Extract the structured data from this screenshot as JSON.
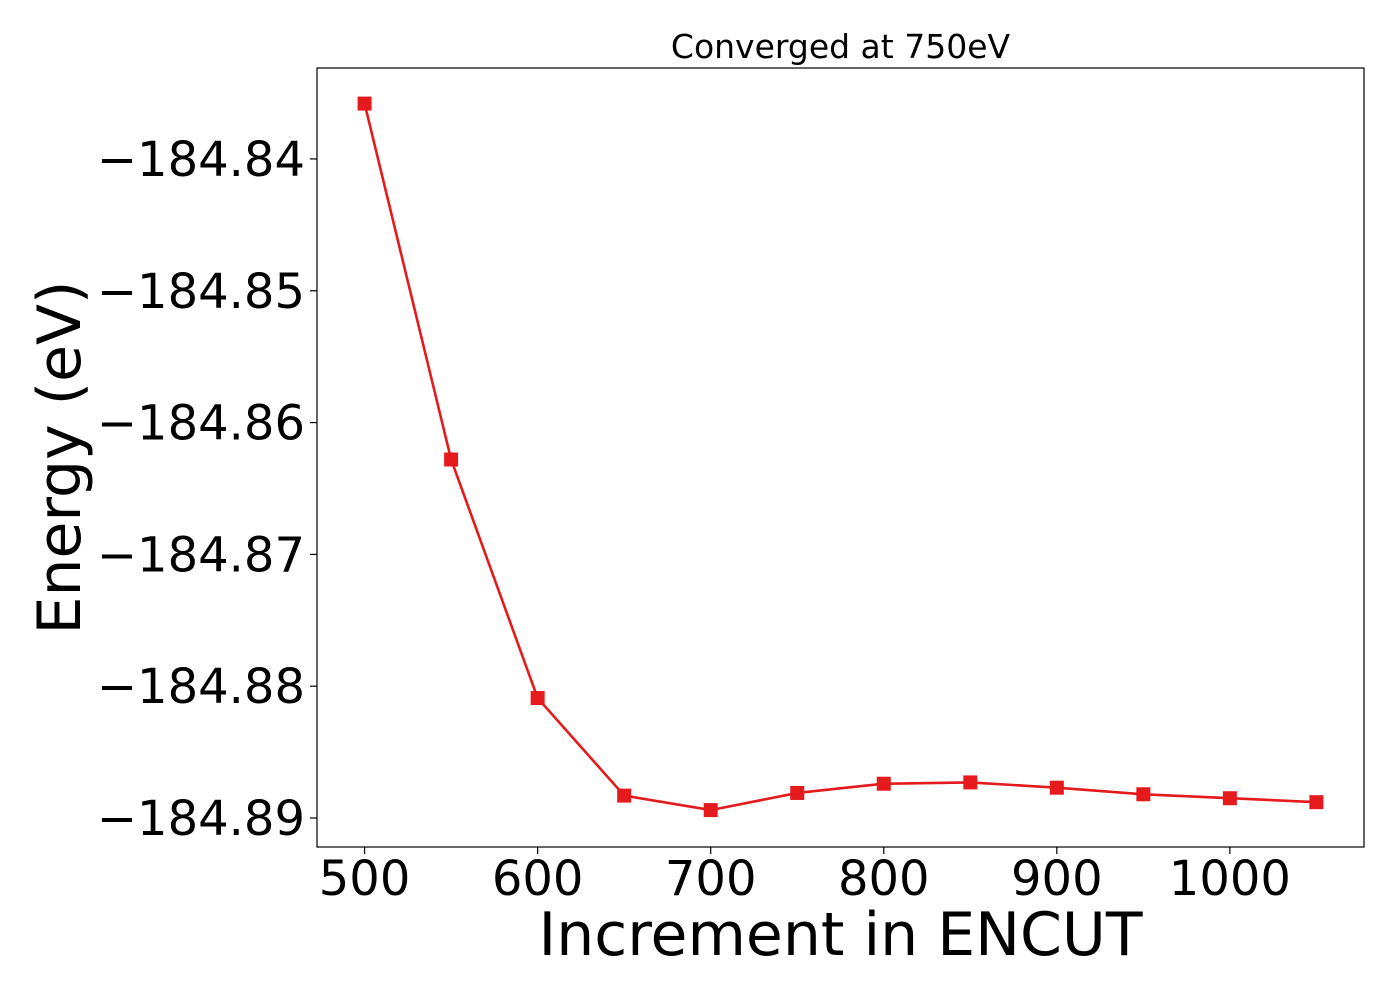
{
  "chart_data": {
    "type": "line",
    "title": "Converged at 750eV",
    "xlabel": "Increment in ENCUT",
    "ylabel": "Energy (eV)",
    "xlim": [
      472.5,
      1077.5
    ],
    "ylim": [
      -184.8922,
      -184.8331
    ],
    "xticks": [
      500,
      600,
      700,
      800,
      900,
      1000
    ],
    "xtick_labels": [
      "500",
      "600",
      "700",
      "800",
      "900",
      "1000"
    ],
    "yticks": [
      -184.84,
      -184.85,
      -184.86,
      -184.87,
      -184.88,
      -184.89
    ],
    "ytick_labels": [
      "−184.84",
      "−184.85",
      "−184.86",
      "−184.87",
      "−184.88",
      "−184.89"
    ],
    "grid": false,
    "series": [
      {
        "color": "#e41a1c",
        "marker": "square",
        "x": [
          500,
          550,
          600,
          650,
          700,
          750,
          800,
          850,
          900,
          950,
          1000,
          1050
        ],
        "y": [
          -184.8358,
          -184.8628,
          -184.8809,
          -184.8883,
          -184.8894,
          -184.8881,
          -184.8874,
          -184.8873,
          -184.8877,
          -184.8882,
          -184.8885,
          -184.8888
        ]
      }
    ]
  }
}
